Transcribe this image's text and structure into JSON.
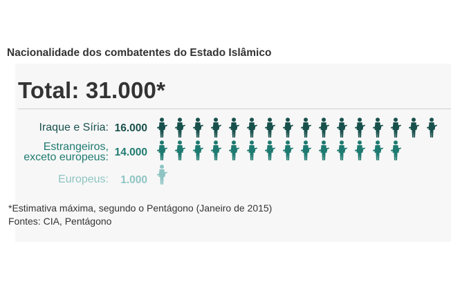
{
  "header": {
    "title": "Nacionalidade dos combatentes do Estado Islâmico"
  },
  "chart_data": {
    "type": "pictogram",
    "total_label": "Total: 31.000*",
    "unit_per_icon": 1000,
    "categories": [
      {
        "name_lines": [
          "Iraque e Síria:"
        ],
        "value_label": "16.000",
        "value": 16000,
        "color": "#18504c",
        "label_color": "#18504c"
      },
      {
        "name_lines": [
          "Estrangeiros,",
          "exceto europeus:"
        ],
        "value_label": "14.000",
        "value": 14000,
        "color": "#1f7b71",
        "label_color": "#1f7b71"
      },
      {
        "name_lines": [
          "Europeus:"
        ],
        "value_label": "1.000",
        "value": 1000,
        "color": "#8ec4c3",
        "label_color": "#8ec4c3"
      }
    ]
  },
  "footer": {
    "note": "*Estimativa máxima, segundo o Pentágono (Janeiro de 2015)",
    "sources": "Fontes: CIA, Pentágono"
  }
}
